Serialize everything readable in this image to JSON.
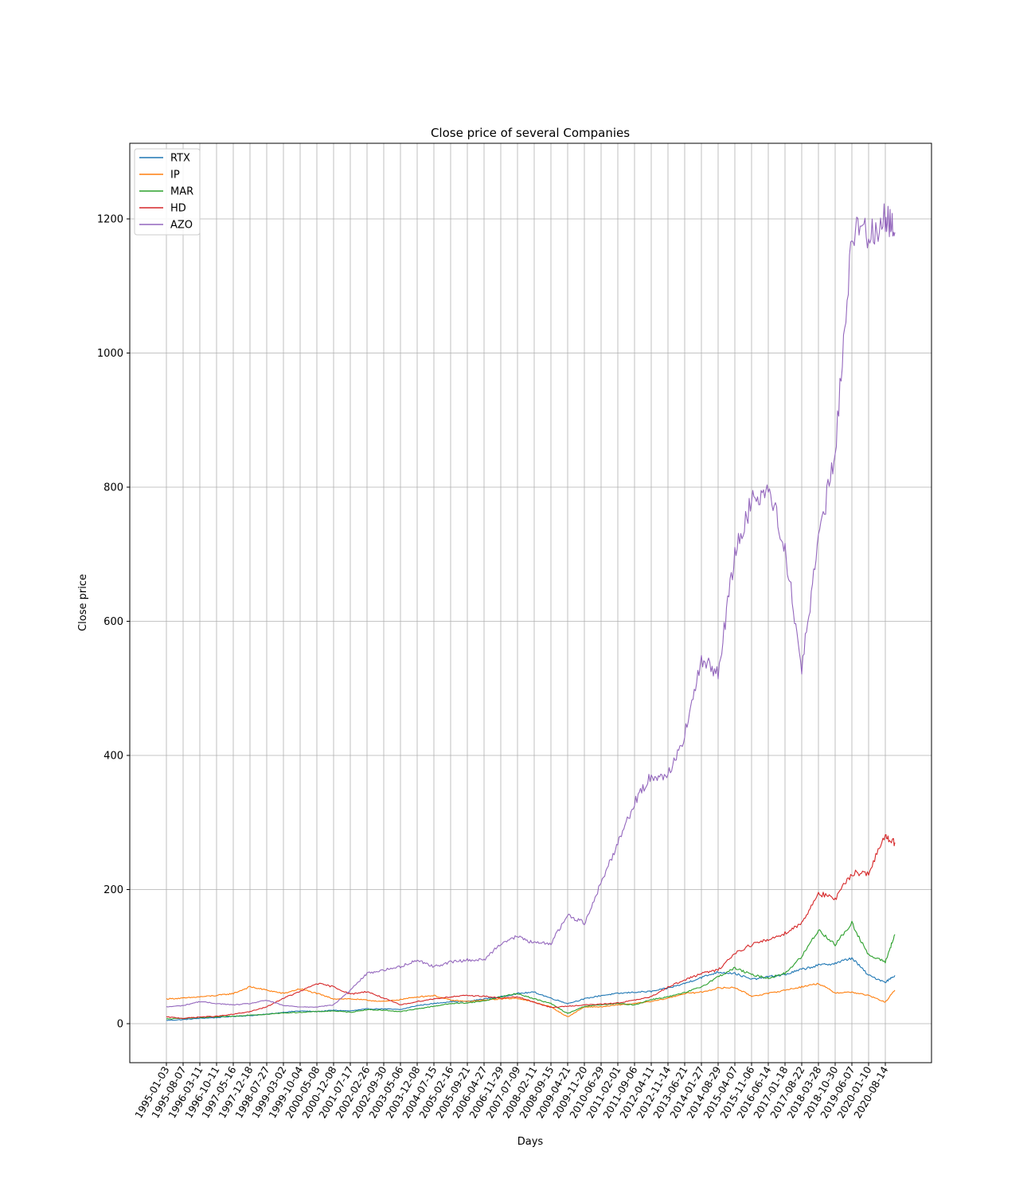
{
  "chart_data": {
    "type": "line",
    "title": "Close price of several Companies",
    "xlabel": "Days",
    "ylabel": "Close price",
    "ylim": [
      -58,
      1310
    ],
    "yticks": [
      0,
      200,
      400,
      600,
      800,
      1000,
      1200
    ],
    "grid": true,
    "legend_position": "top-left",
    "x_tick_labels": [
      "1995-01-03",
      "1995-08-07",
      "1996-03-11",
      "1996-10-11",
      "1997-05-16",
      "1997-12-18",
      "1998-07-27",
      "1999-03-02",
      "1999-10-04",
      "2000-05-08",
      "2000-12-08",
      "2001-07-17",
      "2002-02-26",
      "2002-09-30",
      "2003-05-06",
      "2003-12-08",
      "2004-07-15",
      "2005-02-16",
      "2005-09-21",
      "2006-04-27",
      "2006-11-29",
      "2007-07-09",
      "2008-02-11",
      "2008-09-15",
      "2009-04-21",
      "2009-11-20",
      "2010-06-29",
      "2011-02-01",
      "2011-09-06",
      "2012-04-11",
      "2012-11-14",
      "2013-06-21",
      "2014-01-27",
      "2014-08-29",
      "2015-04-07",
      "2015-11-06",
      "2016-06-14",
      "2017-01-18",
      "2017-08-22",
      "2018-03-28",
      "2018-10-30",
      "2019-06-07",
      "2020-01-10",
      "2020-08-14"
    ],
    "x": [
      "1995-01-03",
      "1995-08-07",
      "1996-03-11",
      "1996-10-11",
      "1997-05-16",
      "1997-12-18",
      "1998-07-27",
      "1999-03-02",
      "1999-10-04",
      "2000-05-08",
      "2000-12-08",
      "2001-07-17",
      "2002-02-26",
      "2002-09-30",
      "2003-05-06",
      "2003-12-08",
      "2004-07-15",
      "2005-02-16",
      "2005-09-21",
      "2006-04-27",
      "2006-11-29",
      "2007-07-09",
      "2008-02-11",
      "2008-09-15",
      "2009-04-21",
      "2009-11-20",
      "2010-06-29",
      "2011-02-01",
      "2011-09-06",
      "2012-04-11",
      "2012-11-14",
      "2013-06-21",
      "2014-01-27",
      "2014-08-29",
      "2015-04-07",
      "2015-11-06",
      "2016-06-14",
      "2017-01-18",
      "2017-08-22",
      "2018-03-28",
      "2018-10-30",
      "2019-06-07",
      "2020-01-10",
      "2020-08-14",
      "2021-01-29"
    ],
    "series": [
      {
        "name": "RTX",
        "color": "#1f77b4",
        "values": [
          5,
          6,
          8,
          9,
          11,
          12,
          14,
          17,
          19,
          18,
          20,
          19,
          22,
          22,
          21,
          27,
          30,
          33,
          33,
          37,
          40,
          45,
          47,
          38,
          30,
          37,
          42,
          45,
          47,
          48,
          53,
          60,
          69,
          77,
          75,
          66,
          70,
          73,
          81,
          87,
          90,
          98,
          72,
          62,
          72
        ]
      },
      {
        "name": "IP",
        "color": "#ff7f0e",
        "values": [
          37,
          38,
          40,
          42,
          45,
          55,
          50,
          45,
          52,
          45,
          37,
          37,
          35,
          33,
          36,
          40,
          42,
          35,
          33,
          35,
          37,
          38,
          32,
          25,
          10,
          25,
          25,
          28,
          30,
          33,
          38,
          45,
          47,
          53,
          54,
          41,
          45,
          50,
          55,
          60,
          46,
          47,
          42,
          32,
          50
        ]
      },
      {
        "name": "MAR",
        "color": "#2ca02c",
        "values": [
          7,
          8,
          9,
          10,
          11,
          13,
          14,
          16,
          17,
          18,
          19,
          17,
          21,
          20,
          18,
          22,
          26,
          30,
          31,
          34,
          40,
          45,
          37,
          30,
          15,
          26,
          28,
          30,
          28,
          36,
          40,
          46,
          55,
          70,
          83,
          73,
          68,
          75,
          100,
          140,
          118,
          150,
          102,
          92,
          133
        ]
      },
      {
        "name": "HD",
        "color": "#d62728",
        "values": [
          10,
          8,
          10,
          11,
          14,
          18,
          25,
          38,
          48,
          60,
          55,
          44,
          48,
          38,
          28,
          33,
          37,
          40,
          42,
          41,
          38,
          40,
          32,
          24,
          26,
          28,
          29,
          31,
          35,
          40,
          55,
          65,
          75,
          80,
          105,
          118,
          125,
          135,
          150,
          195,
          185,
          225,
          225,
          280,
          270
        ]
      },
      {
        "name": "AZO",
        "color": "#9467bd",
        "values": [
          25,
          27,
          33,
          30,
          28,
          30,
          35,
          27,
          25,
          25,
          28,
          50,
          75,
          80,
          85,
          95,
          85,
          92,
          95,
          95,
          120,
          130,
          120,
          120,
          162,
          150,
          210,
          270,
          330,
          370,
          370,
          430,
          540,
          525,
          700,
          780,
          800,
          710,
          530,
          720,
          850,
          1180,
          1180,
          1200,
          1180
        ]
      }
    ]
  }
}
